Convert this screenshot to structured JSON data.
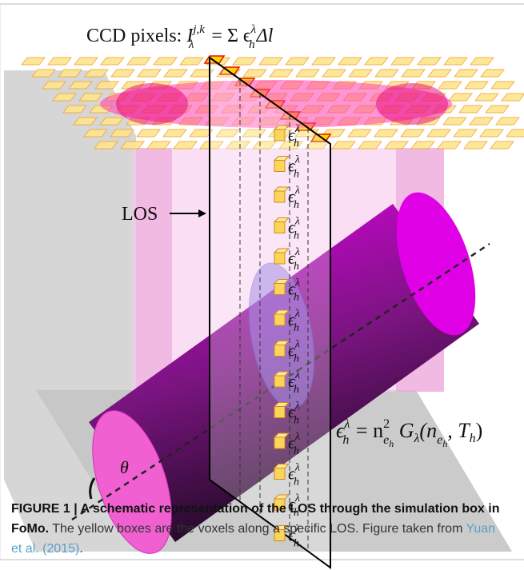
{
  "figure": {
    "ccd_label": [
      "CCD pixels: ",
      "I",
      "j,k",
      "λ",
      " = Σ ϵ",
      "λ",
      "h",
      "Δl"
    ],
    "los_label": "LOS",
    "angle_label": "θ",
    "emissivity_eq": [
      "ϵ",
      "λ",
      "h",
      " = n",
      "2",
      "e",
      "h",
      " G",
      "λ",
      "(n",
      "e",
      "h",
      ", T",
      "h",
      ")"
    ],
    "voxel_labels": [
      [
        "ϵ",
        "λ",
        "h"
      ],
      [
        "ϵ",
        "λ",
        "h"
      ],
      [
        "ϵ",
        "λ",
        "h"
      ],
      [
        "ϵ",
        "λ",
        "h"
      ],
      [
        "ϵ",
        "λ",
        "h"
      ],
      [
        "ϵ",
        "λ",
        "h"
      ],
      [
        "ϵ",
        "λ",
        "h"
      ],
      [
        "ϵ",
        "λ",
        "h"
      ],
      [
        "ϵ",
        "λ",
        "h"
      ],
      [
        "ϵ",
        "λ",
        "h"
      ],
      [
        "ϵ",
        "λ",
        "h"
      ],
      [
        "ϵ",
        "λ",
        "h"
      ],
      [
        "ϵ",
        "λ",
        "h"
      ],
      [
        "ϵ",
        "λ",
        "h"
      ]
    ]
  },
  "caption": {
    "label": "FIGURE 1 | A schematic representation of the LOS through the simulation box in FoMo.",
    "text": " The yellow boxes are the voxels along a specific LOS. Figure taken from ",
    "link": "Yuan et al. (2015)",
    "end": "."
  }
}
